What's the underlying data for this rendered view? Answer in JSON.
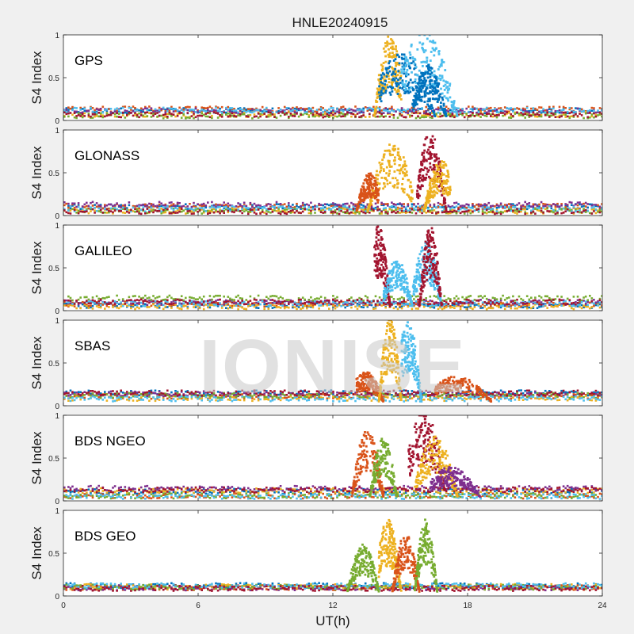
{
  "figure": {
    "title": "HNLE20240915",
    "xlabel": "UT(h)",
    "ylabel": "S4 Index",
    "watermark": "IONISE",
    "background": "#f0f0f0",
    "axes_background": "#ffffff"
  },
  "chart_data": {
    "type": "scatter",
    "xlim": [
      0,
      24
    ],
    "xticks": [
      "0",
      "6",
      "12",
      "18",
      "24"
    ],
    "xtick_values": [
      0,
      6,
      12,
      18,
      24
    ],
    "ylim": [
      0,
      1
    ],
    "yticks": [
      "0",
      "0.5",
      "1"
    ],
    "ytick_values": [
      0,
      0.5,
      1
    ],
    "grid": false,
    "colors": [
      "#0072bd",
      "#d95319",
      "#edb120",
      "#7e2f8e",
      "#77ac30",
      "#4dbeee",
      "#a2142f"
    ],
    "panels": [
      {
        "label": "GPS",
        "baseline": [
          0.02,
          0.15
        ],
        "scintillation": [
          {
            "series": "#edb120",
            "peak_x": 14.5,
            "start": 13.8,
            "end": 15.0,
            "max_s4": 0.95
          },
          {
            "series": "#0072bd",
            "peak_x": 15.0,
            "start": 14.0,
            "end": 16.5,
            "max_s4": 0.75
          },
          {
            "series": "#4dbeee",
            "peak_x": 16.0,
            "start": 15.0,
            "end": 17.5,
            "max_s4": 1.0
          },
          {
            "series": "#0072bd",
            "peak_x": 16.2,
            "start": 15.5,
            "end": 17.0,
            "max_s4": 0.6
          }
        ]
      },
      {
        "label": "GLONASS",
        "baseline": [
          0.02,
          0.15
        ],
        "scintillation": [
          {
            "series": "#edb120",
            "peak_x": 14.6,
            "start": 13.5,
            "end": 15.5,
            "max_s4": 0.8
          },
          {
            "series": "#d95319",
            "peak_x": 13.6,
            "start": 13.0,
            "end": 14.0,
            "max_s4": 0.45
          },
          {
            "series": "#a2142f",
            "peak_x": 16.3,
            "start": 15.7,
            "end": 17.0,
            "max_s4": 0.95
          },
          {
            "series": "#edb120",
            "peak_x": 16.8,
            "start": 16.0,
            "end": 17.2,
            "max_s4": 0.6
          }
        ]
      },
      {
        "label": "GALILEO",
        "baseline": [
          0.02,
          0.15
        ],
        "scintillation": [
          {
            "series": "#a2142f",
            "peak_x": 14.0,
            "start": 13.8,
            "end": 14.5,
            "max_s4": 0.95
          },
          {
            "series": "#4dbeee",
            "peak_x": 14.8,
            "start": 14.2,
            "end": 15.5,
            "max_s4": 0.55
          },
          {
            "series": "#4dbeee",
            "peak_x": 16.1,
            "start": 15.5,
            "end": 16.8,
            "max_s4": 0.75
          },
          {
            "series": "#a2142f",
            "peak_x": 16.3,
            "start": 15.8,
            "end": 16.8,
            "max_s4": 0.95
          }
        ]
      },
      {
        "label": "SBAS",
        "baseline": [
          0.05,
          0.15
        ],
        "scintillation": [
          {
            "series": "#d95319",
            "peak_x": 13.4,
            "start": 13.0,
            "end": 14.2,
            "max_s4": 0.35
          },
          {
            "series": "#edb120",
            "peak_x": 14.5,
            "start": 14.0,
            "end": 15.0,
            "max_s4": 1.0
          },
          {
            "series": "#4dbeee",
            "peak_x": 15.3,
            "start": 15.0,
            "end": 15.9,
            "max_s4": 0.95
          },
          {
            "series": "#d95319",
            "peak_x": 17.5,
            "start": 16.5,
            "end": 19.0,
            "max_s4": 0.3
          }
        ]
      },
      {
        "label": "BDS NGEO",
        "baseline": [
          0.02,
          0.15
        ],
        "scintillation": [
          {
            "series": "#d95319",
            "peak_x": 13.5,
            "start": 12.8,
            "end": 14.2,
            "max_s4": 0.8
          },
          {
            "series": "#77ac30",
            "peak_x": 14.2,
            "start": 13.6,
            "end": 14.8,
            "max_s4": 0.7
          },
          {
            "series": "#a2142f",
            "peak_x": 16.0,
            "start": 15.3,
            "end": 17.0,
            "max_s4": 1.0
          },
          {
            "series": "#edb120",
            "peak_x": 16.5,
            "start": 15.6,
            "end": 17.5,
            "max_s4": 0.7
          },
          {
            "series": "#7e2f8e",
            "peak_x": 17.2,
            "start": 16.3,
            "end": 18.5,
            "max_s4": 0.35
          }
        ]
      },
      {
        "label": "BDS GEO",
        "baseline": [
          0.05,
          0.15
        ],
        "scintillation": [
          {
            "series": "#77ac30",
            "peak_x": 13.3,
            "start": 12.6,
            "end": 14.0,
            "max_s4": 0.55
          },
          {
            "series": "#edb120",
            "peak_x": 14.4,
            "start": 14.0,
            "end": 15.0,
            "max_s4": 0.85
          },
          {
            "series": "#d95319",
            "peak_x": 15.2,
            "start": 14.6,
            "end": 15.8,
            "max_s4": 0.7
          },
          {
            "series": "#77ac30",
            "peak_x": 16.1,
            "start": 15.6,
            "end": 16.6,
            "max_s4": 0.85
          }
        ]
      }
    ]
  }
}
